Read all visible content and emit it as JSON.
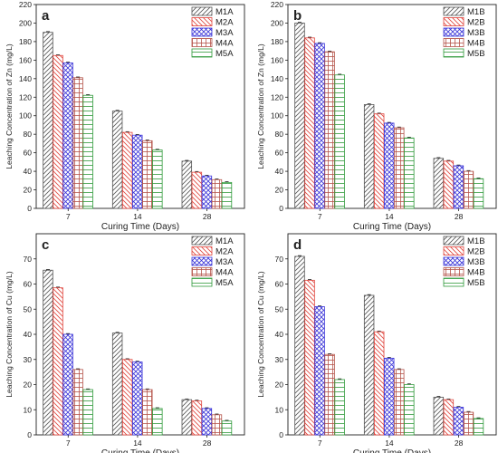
{
  "chart_data": [
    {
      "panel": "a",
      "type": "bar",
      "xlabel": "Curing Time (Days)",
      "ylabel": "Leaching Concentration of Zn (mg/L)",
      "categories": [
        "7",
        "14",
        "28"
      ],
      "ylim": [
        0,
        220
      ],
      "yticks": [
        0,
        20,
        40,
        60,
        80,
        100,
        120,
        140,
        160,
        180,
        200,
        220
      ],
      "legend_position": "top-right",
      "series": [
        {
          "name": "M1A",
          "values": [
            190,
            105,
            51
          ]
        },
        {
          "name": "M2A",
          "values": [
            165,
            82,
            39
          ]
        },
        {
          "name": "M3A",
          "values": [
            157,
            79,
            35
          ]
        },
        {
          "name": "M4A",
          "values": [
            141,
            73,
            31
          ]
        },
        {
          "name": "M5A",
          "values": [
            122,
            63,
            28
          ]
        }
      ]
    },
    {
      "panel": "b",
      "type": "bar",
      "xlabel": "Curing Time (Days)",
      "ylabel": "Leaching Concentration of Zn (mg/L)",
      "categories": [
        "7",
        "14",
        "28"
      ],
      "ylim": [
        0,
        220
      ],
      "yticks": [
        0,
        20,
        40,
        60,
        80,
        100,
        120,
        140,
        160,
        180,
        200,
        220
      ],
      "legend_position": "top-right",
      "series": [
        {
          "name": "M1B",
          "values": [
            200,
            112,
            54
          ]
        },
        {
          "name": "M2B",
          "values": [
            184,
            102,
            51
          ]
        },
        {
          "name": "M3B",
          "values": [
            178,
            92,
            46
          ]
        },
        {
          "name": "M4B",
          "values": [
            169,
            87,
            40
          ]
        },
        {
          "name": "M5B",
          "values": [
            144,
            76,
            32
          ]
        }
      ]
    },
    {
      "panel": "c",
      "type": "bar",
      "xlabel": "Curing Time (Days)",
      "ylabel": "Leaching Concentration of Cu (mg/L)",
      "categories": [
        "7",
        "14",
        "28"
      ],
      "ylim": [
        0,
        80
      ],
      "yticks": [
        0,
        10,
        20,
        30,
        40,
        50,
        60,
        70
      ],
      "legend_position": "top-right",
      "series": [
        {
          "name": "M1A",
          "values": [
            65.5,
            40.5,
            14
          ]
        },
        {
          "name": "M2A",
          "values": [
            58.5,
            30,
            13.5
          ]
        },
        {
          "name": "M3A",
          "values": [
            40,
            29,
            10.5
          ]
        },
        {
          "name": "M4A",
          "values": [
            26,
            18,
            8
          ]
        },
        {
          "name": "M5A",
          "values": [
            18,
            10.5,
            5.5
          ]
        }
      ]
    },
    {
      "panel": "d",
      "type": "bar",
      "xlabel": "Curing Time (Days)",
      "ylabel": "Leaching Concentration of Cu (mg/L)",
      "categories": [
        "7",
        "14",
        "28"
      ],
      "ylim": [
        0,
        80
      ],
      "yticks": [
        0,
        10,
        20,
        30,
        40,
        50,
        60,
        70
      ],
      "legend_position": "top-right",
      "series": [
        {
          "name": "M1B",
          "values": [
            71,
            55.5,
            15
          ]
        },
        {
          "name": "M2B",
          "values": [
            61.5,
            41,
            14
          ]
        },
        {
          "name": "M3B",
          "values": [
            51,
            30.5,
            11
          ]
        },
        {
          "name": "M4B",
          "values": [
            32,
            26,
            9
          ]
        },
        {
          "name": "M5B",
          "values": [
            22,
            20,
            6.5
          ]
        }
      ]
    }
  ],
  "series_styles": [
    {
      "stroke": "#555555",
      "pattern": "diag-right"
    },
    {
      "stroke": "#e0443c",
      "pattern": "diag-left"
    },
    {
      "stroke": "#3a34d8",
      "pattern": "cross-diag"
    },
    {
      "stroke": "#b5544a",
      "pattern": "grid"
    },
    {
      "stroke": "#2f9a3a",
      "pattern": "horizontal"
    }
  ]
}
